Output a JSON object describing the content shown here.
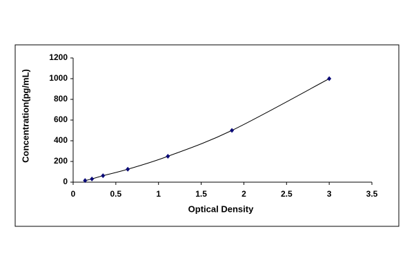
{
  "chart_data": {
    "type": "scatter",
    "x_label": "Optical Density",
    "y_label": "Concentration(pg/mL)",
    "series": [
      {
        "color": "#0a0a78",
        "line_color": "#000000",
        "x": [
          0.14,
          0.22,
          0.35,
          0.64,
          1.11,
          1.86,
          3.0
        ],
        "values": [
          15.6,
          31.25,
          62.5,
          125,
          250,
          500,
          1000
        ]
      }
    ],
    "xlim": [
      0,
      3.5
    ],
    "xticks": [
      0,
      0.5,
      1,
      1.5,
      2,
      2.5,
      3,
      3.5
    ],
    "ylim": [
      0,
      1200
    ],
    "yticks": [
      0,
      200,
      400,
      600,
      800,
      1000,
      1200
    ],
    "grid": false
  }
}
